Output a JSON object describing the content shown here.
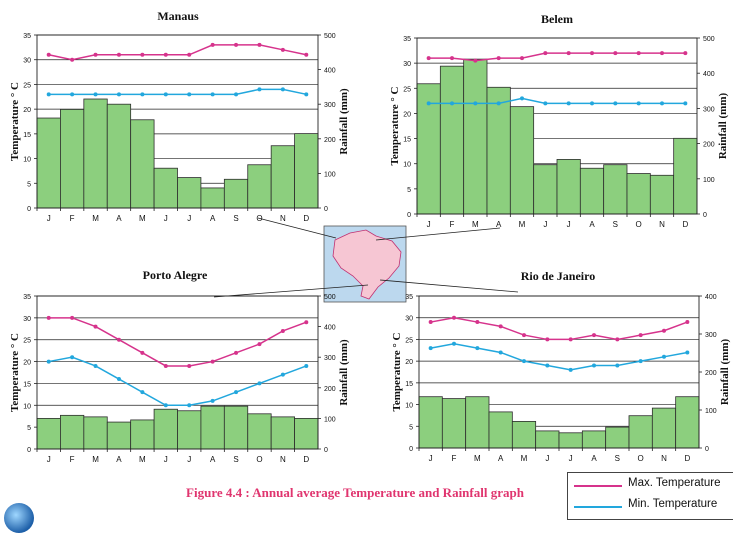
{
  "caption": "Figure 4.4 : Annual average Temperature and Rainfall graph",
  "legend": {
    "max_label": "Max. Temperature",
    "min_label": "Min. Temperature"
  },
  "colors": {
    "max_temp": "#d6338c",
    "min_temp": "#22a7dd",
    "rain_fill": "#8ccf7e",
    "map_fill": "#f6c6d3",
    "map_bg": "#bcd8ee"
  },
  "chart_data": [
    {
      "type": "bar",
      "title": "Manaus",
      "categories": [
        "J",
        "F",
        "M",
        "A",
        "M",
        "J",
        "J",
        "A",
        "S",
        "O",
        "N",
        "D"
      ],
      "ylabel": "Temperature ° C",
      "y2label": "Rainfall (mm)",
      "ylim": [
        0,
        35
      ],
      "y2lim": [
        0,
        500
      ],
      "yticks": [
        0,
        5,
        10,
        15,
        20,
        25,
        30,
        35
      ],
      "y2ticks": [
        0,
        100,
        200,
        300,
        400,
        500
      ],
      "grid": true,
      "series": [
        {
          "kind": "bar",
          "axis": "right",
          "values": [
            260,
            285,
            315,
            300,
            255,
            115,
            88,
            58,
            83,
            125,
            180,
            215
          ]
        },
        {
          "kind": "line",
          "axis": "left",
          "color": "#d6338c",
          "values": [
            31,
            30,
            31,
            31,
            31,
            31,
            31,
            33,
            33,
            33,
            32,
            31
          ]
        },
        {
          "kind": "line",
          "axis": "left",
          "color": "#22a7dd",
          "values": [
            23,
            23,
            23,
            23,
            23,
            23,
            23,
            23,
            23,
            24,
            24,
            23
          ]
        }
      ]
    },
    {
      "type": "bar",
      "title": "Belem",
      "categories": [
        "J",
        "F",
        "M",
        "A",
        "M",
        "J",
        "J",
        "A",
        "S",
        "O",
        "N",
        "D"
      ],
      "ylabel": "Temperature ° C",
      "y2label": "Rainfall (mm)",
      "ylim": [
        0,
        35
      ],
      "y2lim": [
        0,
        500
      ],
      "yticks": [
        0,
        5,
        10,
        15,
        20,
        25,
        30,
        35
      ],
      "y2ticks": [
        0,
        100,
        200,
        300,
        400,
        500
      ],
      "grid": true,
      "series": [
        {
          "kind": "bar",
          "axis": "right",
          "values": [
            370,
            420,
            440,
            360,
            305,
            140,
            155,
            130,
            140,
            115,
            110,
            215
          ]
        },
        {
          "kind": "line",
          "axis": "left",
          "color": "#d6338c",
          "values": [
            31,
            31,
            30.5,
            31,
            31,
            32,
            32,
            32,
            32,
            32,
            32,
            32
          ]
        },
        {
          "kind": "line",
          "axis": "left",
          "color": "#22a7dd",
          "values": [
            22,
            22,
            22,
            22,
            23,
            22,
            22,
            22,
            22,
            22,
            22,
            22
          ]
        }
      ]
    },
    {
      "type": "bar",
      "title": "Porto Alegre",
      "categories": [
        "J",
        "F",
        "M",
        "A",
        "M",
        "J",
        "J",
        "A",
        "S",
        "O",
        "N",
        "D"
      ],
      "ylabel": "Temperature ° C",
      "y2label": "Rainfall (mm)",
      "ylim": [
        0,
        35
      ],
      "y2lim": [
        0,
        500
      ],
      "yticks": [
        0,
        5,
        10,
        15,
        20,
        25,
        30,
        35
      ],
      "y2ticks": [
        0,
        100,
        200,
        300,
        400,
        500
      ],
      "grid": true,
      "series": [
        {
          "kind": "bar",
          "axis": "right",
          "values": [
            100,
            110,
            105,
            88,
            95,
            130,
            125,
            140,
            140,
            115,
            105,
            100
          ]
        },
        {
          "kind": "line",
          "axis": "left",
          "color": "#d6338c",
          "values": [
            30,
            30,
            28,
            25,
            22,
            19,
            19,
            20,
            22,
            24,
            27,
            29
          ]
        },
        {
          "kind": "line",
          "axis": "left",
          "color": "#22a7dd",
          "values": [
            20,
            21,
            19,
            16,
            13,
            10,
            10,
            11,
            13,
            15,
            17,
            19
          ]
        }
      ]
    },
    {
      "type": "bar",
      "title": "Rio de Janeiro",
      "categories": [
        "J",
        "F",
        "M",
        "A",
        "M",
        "J",
        "J",
        "A",
        "S",
        "O",
        "N",
        "D"
      ],
      "ylabel": "Temperature ° C",
      "y2label": "Rainfall (mm)",
      "ylim": [
        0,
        35
      ],
      "y2lim": [
        0,
        400
      ],
      "yticks": [
        0,
        5,
        10,
        15,
        20,
        25,
        30,
        35
      ],
      "y2ticks": [
        0,
        100,
        200,
        300,
        400
      ],
      "grid": true,
      "series": [
        {
          "kind": "bar",
          "axis": "right",
          "values": [
            135,
            130,
            135,
            95,
            70,
            45,
            40,
            45,
            55,
            85,
            105,
            135
          ]
        },
        {
          "kind": "line",
          "axis": "left",
          "color": "#d6338c",
          "values": [
            29,
            30,
            29,
            28,
            26,
            25,
            25,
            26,
            25,
            26,
            27,
            29
          ]
        },
        {
          "kind": "line",
          "axis": "left",
          "color": "#22a7dd",
          "values": [
            23,
            24,
            23,
            22,
            20,
            19,
            18,
            19,
            19,
            20,
            21,
            22
          ]
        }
      ]
    }
  ]
}
